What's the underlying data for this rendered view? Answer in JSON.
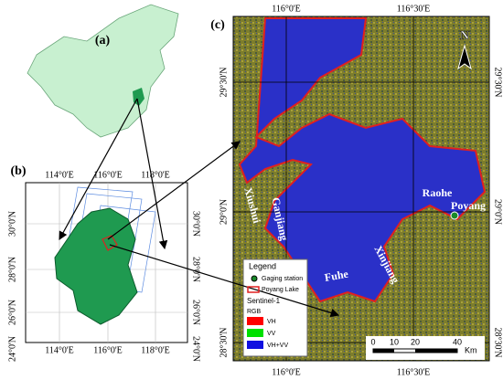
{
  "panels": {
    "a": {
      "label": "(a)"
    },
    "b": {
      "label": "(b)",
      "top_ticks": [
        "114°0'E",
        "116°0'E",
        "118°0'E"
      ],
      "bottom_ticks": [
        "114°0'E",
        "116°0'E",
        "118°0'E"
      ],
      "left_ticks": [
        "30°0'N",
        "28°0'N",
        "26°0'N",
        "24°0'N"
      ],
      "right_ticks": [
        "30°0'N",
        "28°0'N",
        "26°0'N",
        "24°0'N"
      ]
    },
    "c": {
      "label": "(c)",
      "top_ticks": [
        "116°0'E",
        "116°30'E"
      ],
      "bottom_ticks": [
        "116°0'E",
        "116°30'E"
      ],
      "left_ticks": [
        "29°30'N",
        "29°0'N",
        "28°30'N"
      ],
      "right_ticks": [
        "29°30'N",
        "29°0'N",
        "28°30'N"
      ],
      "north": "N",
      "places": [
        "Xiushui",
        "Ganjiang",
        "Raohe",
        "Poyang",
        "Fuhe",
        "Xinjiang"
      ],
      "legend": {
        "title": "Legend",
        "items": [
          "Gaging station",
          "Poyang Lake"
        ],
        "sensor": "Sentinel-1",
        "composite": "RGB",
        "bands": [
          "VH",
          "VV",
          "VH+VV"
        ]
      },
      "scale": {
        "ticks": [
          0,
          10,
          20,
          40
        ],
        "unit": "Km"
      }
    }
  }
}
